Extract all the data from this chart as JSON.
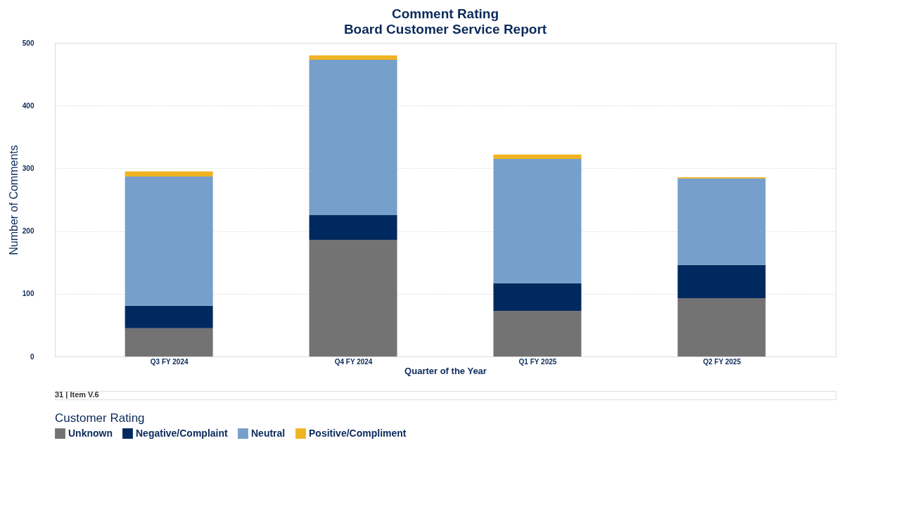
{
  "chart_data": {
    "type": "bar",
    "title": "Comment Rating",
    "subtitle": "Board Customer Service Report",
    "xlabel": "Quarter of the Year",
    "ylabel": "Number of Comments",
    "legend_title": "Customer Rating",
    "legend": "bottom",
    "stacked": true,
    "grid": "y",
    "categories": [
      "Q3 FY 2024",
      "Q4 FY 2024",
      "Q1 FY 2025",
      "Q2 FY 2025"
    ],
    "series": [
      {
        "name": "Unknown",
        "color": "#737373",
        "values": [
          45,
          186,
          73,
          93
        ]
      },
      {
        "name": "Negative/Complaint",
        "color": "#002960",
        "values": [
          36,
          40,
          44,
          53
        ]
      },
      {
        "name": "Neutral",
        "color": "#769fcc",
        "values": [
          206,
          247,
          198,
          138
        ]
      },
      {
        "name": "Positive/Compliment",
        "color": "#f0b323",
        "values": [
          8,
          7,
          7,
          2
        ]
      }
    ],
    "ylim": [
      0,
      500
    ],
    "yticks": [
      0,
      100,
      200,
      300,
      400,
      500
    ],
    "annotations": [
      "31 | Item V.6"
    ]
  }
}
